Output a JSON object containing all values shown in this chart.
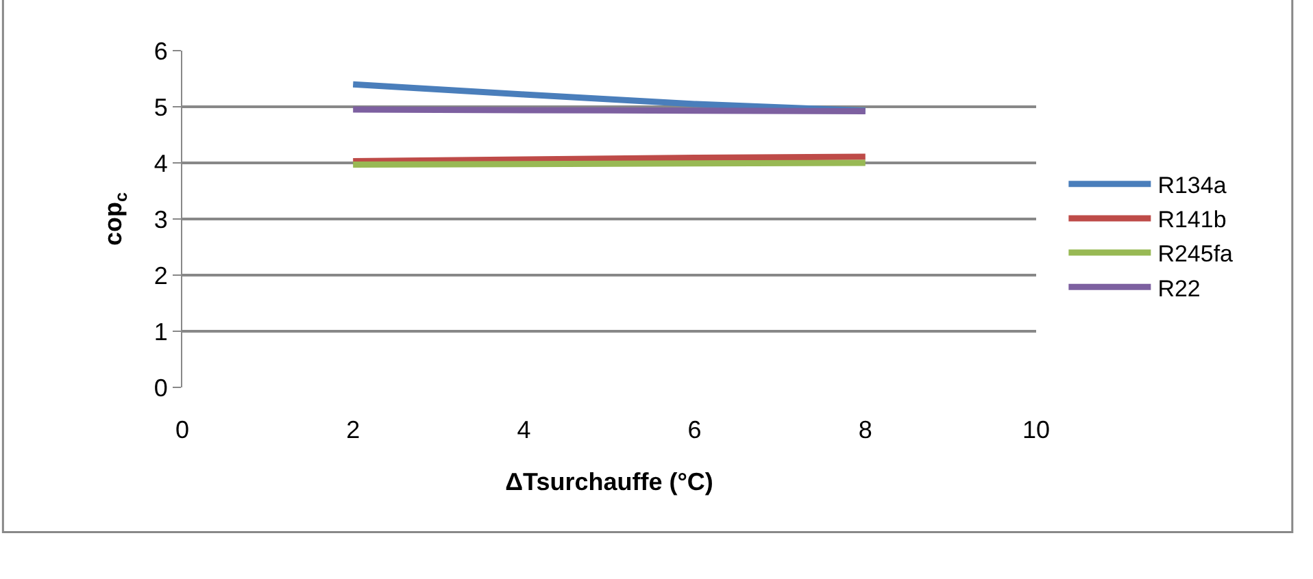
{
  "chart_data": {
    "type": "line",
    "xlabel": "ΔTsurchauffe (°C)",
    "ylabel": "cop$_{c}$",
    "x": [
      2,
      4,
      6,
      8
    ],
    "series": [
      {
        "name": "R134a",
        "color": "#4a7ebb",
        "values": [
          5.4,
          5.22,
          5.05,
          4.93
        ]
      },
      {
        "name": "R141b",
        "color": "#be4b48",
        "values": [
          4.03,
          4.06,
          4.09,
          4.11
        ]
      },
      {
        "name": "R245fa",
        "color": "#98b954",
        "values": [
          3.97,
          3.98,
          3.99,
          4.0
        ]
      },
      {
        "name": "R22",
        "color": "#7d60a0",
        "values": [
          4.95,
          4.94,
          4.93,
          4.92
        ]
      }
    ],
    "xlim": [
      0,
      10
    ],
    "xticks": [
      0,
      2,
      4,
      6,
      8,
      10
    ],
    "ylim": [
      0,
      6
    ],
    "yticks": [
      0,
      1,
      2,
      3,
      4,
      5,
      6
    ],
    "grid": "y",
    "legend": "right",
    "marker": "none",
    "line_style": "solid"
  }
}
